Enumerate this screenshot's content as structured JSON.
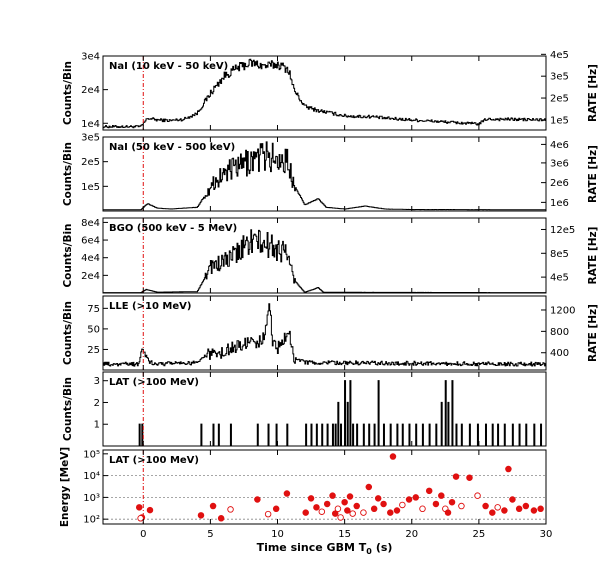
{
  "chart_data": {
    "type": "multi-panel",
    "x_axis": {
      "label": "Time since GBM T",
      "label_subscript": "0",
      "label_unit": "(s)",
      "range": [
        -3,
        30
      ],
      "ticks": [
        0,
        5,
        10,
        15,
        20,
        25,
        30
      ],
      "tick_labels": [
        "0",
        "5",
        "10",
        "15",
        "20",
        "25",
        "30"
      ]
    },
    "trigger_line": {
      "x": 0,
      "color": "#e01010"
    },
    "panels": [
      {
        "id": "nai-low",
        "label": "NaI (10 keV - 50 keV)",
        "ylabel": "Counts/Bin",
        "ylim": [
          8000,
          30000
        ],
        "yticks": [
          10000,
          20000,
          30000
        ],
        "ytick_labels": [
          "1e4",
          "2e4",
          "3e4"
        ],
        "right_label": "RATE [Hz]",
        "right_ticks": [
          {
            "value": 11000,
            "label": "1e5"
          },
          {
            "value": 17500,
            "label": "2e5"
          },
          {
            "value": 24000,
            "label": "3e5"
          },
          {
            "value": 30500,
            "label": "4e5"
          }
        ],
        "baseline": 9000,
        "profile": [
          [
            -3,
            9000
          ],
          [
            -0.2,
            9000
          ],
          [
            0.3,
            11500
          ],
          [
            1,
            11000
          ],
          [
            2,
            10800
          ],
          [
            3,
            11200
          ],
          [
            4,
            13000
          ],
          [
            5,
            19000
          ],
          [
            6,
            24000
          ],
          [
            7,
            26500
          ],
          [
            8,
            28000
          ],
          [
            9,
            27000
          ],
          [
            10,
            27500
          ],
          [
            10.8,
            26000
          ],
          [
            11.2,
            20000
          ],
          [
            12,
            15000
          ],
          [
            13,
            13800
          ],
          [
            14,
            13000
          ],
          [
            15,
            12200
          ],
          [
            16,
            12000
          ],
          [
            17,
            12000
          ],
          [
            18,
            11500
          ],
          [
            20,
            11000
          ],
          [
            22,
            10500
          ],
          [
            24,
            10000
          ],
          [
            25,
            9800
          ],
          [
            25.5,
            11200
          ],
          [
            27,
            11200
          ],
          [
            30,
            11000
          ]
        ]
      },
      {
        "id": "nai-high",
        "label": "NaI (50 keV - 500 keV)",
        "ylabel": "Counts/Bin",
        "ylim": [
          0,
          300000
        ],
        "yticks": [
          100000,
          200000,
          300000
        ],
        "ytick_labels": [
          "1e5",
          "2e5",
          "3e5"
        ],
        "right_label": "RATE [Hz]",
        "right_ticks": [
          {
            "value": 35000,
            "label": "1e6"
          },
          {
            "value": 115000,
            "label": "2e6"
          },
          {
            "value": 195000,
            "label": "3e6"
          },
          {
            "value": 270000,
            "label": "4e6"
          }
        ],
        "baseline": 5000,
        "profile": [
          [
            -3,
            5000
          ],
          [
            -0.2,
            5000
          ],
          [
            0.3,
            30000
          ],
          [
            1,
            12000
          ],
          [
            2,
            8000
          ],
          [
            4,
            15000
          ],
          [
            5,
            100000
          ],
          [
            6,
            155000
          ],
          [
            7,
            175000
          ],
          [
            8,
            205000
          ],
          [
            9,
            225000
          ],
          [
            10,
            210000
          ],
          [
            10.7,
            200000
          ],
          [
            11.2,
            110000
          ],
          [
            12,
            25000
          ],
          [
            13,
            50000
          ],
          [
            13.6,
            15000
          ],
          [
            15,
            8000
          ],
          [
            16.5,
            20000
          ],
          [
            18,
            8000
          ],
          [
            20,
            6000
          ],
          [
            30,
            5000
          ]
        ]
      },
      {
        "id": "bgo",
        "label": "BGO (500 keV - 5 MeV)",
        "ylabel": "Counts/Bin",
        "ylim": [
          0,
          85000
        ],
        "yticks": [
          20000,
          40000,
          60000,
          80000
        ],
        "ytick_labels": [
          "2e4",
          "4e4",
          "6e4",
          "8e4"
        ],
        "right_label": "RATE [Hz]",
        "right_ticks": [
          {
            "value": 18000,
            "label": "4e5"
          },
          {
            "value": 45000,
            "label": "8e5"
          },
          {
            "value": 72000,
            "label": "12e5"
          }
        ],
        "baseline": 400,
        "profile": [
          [
            -3,
            400
          ],
          [
            -0.2,
            400
          ],
          [
            0.2,
            4000
          ],
          [
            1,
            1000
          ],
          [
            4,
            1500
          ],
          [
            5,
            30000
          ],
          [
            6,
            35000
          ],
          [
            7,
            45000
          ],
          [
            8,
            60000
          ],
          [
            9,
            55000
          ],
          [
            10,
            50000
          ],
          [
            10.7,
            45000
          ],
          [
            11.2,
            15000
          ],
          [
            12,
            800
          ],
          [
            13,
            6000
          ],
          [
            13.4,
            800
          ],
          [
            30,
            400
          ]
        ]
      },
      {
        "id": "lle",
        "label": "LLE (>10 MeV)",
        "ylabel": "Counts/Bin",
        "ylim": [
          0,
          90
        ],
        "yticks": [
          25,
          50,
          75
        ],
        "ytick_labels": [
          "25",
          "50",
          "75"
        ],
        "right_label": "RATE [Hz]",
        "right_ticks": [
          {
            "value": 21,
            "label": "400"
          },
          {
            "value": 47,
            "label": "800"
          },
          {
            "value": 73,
            "label": "1200"
          }
        ],
        "baseline": 7,
        "profile": [
          [
            -3,
            7
          ],
          [
            -0.4,
            7
          ],
          [
            -0.1,
            25
          ],
          [
            0.4,
            10
          ],
          [
            1,
            7
          ],
          [
            4,
            9
          ],
          [
            5,
            20
          ],
          [
            6,
            23
          ],
          [
            7,
            28
          ],
          [
            8,
            33
          ],
          [
            9,
            38
          ],
          [
            9.4,
            80
          ],
          [
            9.6,
            30
          ],
          [
            10,
            28
          ],
          [
            10.8,
            48
          ],
          [
            11.2,
            14
          ],
          [
            12,
            9
          ],
          [
            30,
            7
          ]
        ]
      },
      {
        "id": "lat-counts",
        "label": "LAT (>100 MeV)",
        "ylabel": "Counts/Bin",
        "ylim": [
          0,
          3.4
        ],
        "yticks": [
          1,
          2,
          3
        ],
        "ytick_labels": [
          "1",
          "2",
          "3"
        ],
        "bins": [
          [
            -0.3,
            1
          ],
          [
            -0.1,
            1
          ],
          [
            4.3,
            1
          ],
          [
            5.2,
            1
          ],
          [
            5.6,
            1
          ],
          [
            6.5,
            1
          ],
          [
            8.5,
            1
          ],
          [
            9.3,
            1
          ],
          [
            9.9,
            1
          ],
          [
            10.7,
            1
          ],
          [
            12.1,
            1
          ],
          [
            12.5,
            1
          ],
          [
            12.9,
            1
          ],
          [
            13.3,
            1
          ],
          [
            13.7,
            1
          ],
          [
            14.1,
            1
          ],
          [
            14.3,
            1
          ],
          [
            14.5,
            2
          ],
          [
            14.7,
            1
          ],
          [
            15.0,
            3
          ],
          [
            15.2,
            2
          ],
          [
            15.4,
            3
          ],
          [
            15.6,
            1
          ],
          [
            15.9,
            1
          ],
          [
            16.4,
            1
          ],
          [
            16.8,
            1
          ],
          [
            17.2,
            1
          ],
          [
            17.5,
            3
          ],
          [
            17.9,
            1
          ],
          [
            18.4,
            1
          ],
          [
            18.9,
            1
          ],
          [
            19.3,
            1
          ],
          [
            19.8,
            1
          ],
          [
            20.3,
            1
          ],
          [
            20.8,
            1
          ],
          [
            21.3,
            1
          ],
          [
            21.8,
            1
          ],
          [
            22.2,
            2
          ],
          [
            22.5,
            3
          ],
          [
            22.7,
            2
          ],
          [
            23.0,
            3
          ],
          [
            23.3,
            1
          ],
          [
            23.7,
            1
          ],
          [
            24.3,
            1
          ],
          [
            24.9,
            1
          ],
          [
            25.5,
            1
          ],
          [
            26.0,
            1
          ],
          [
            26.4,
            1
          ],
          [
            26.9,
            1
          ],
          [
            27.5,
            1
          ],
          [
            28.0,
            1
          ],
          [
            28.5,
            1
          ],
          [
            29.1,
            1
          ],
          [
            29.6,
            1
          ]
        ]
      },
      {
        "id": "lat-energy",
        "label": "LAT (>100 MeV)",
        "ylabel": "Energy [MeV]",
        "ylim": [
          60,
          150000
        ],
        "log_scale": true,
        "yticks": [
          100,
          1000,
          10000,
          100000
        ],
        "ytick_labels": [
          "10²",
          "10³",
          "10⁴",
          "10⁵"
        ],
        "gridlines": [
          100,
          1000,
          10000
        ],
        "events": [
          [
            -0.3,
            350,
            true
          ],
          [
            -0.1,
            120,
            true
          ],
          [
            0.5,
            260,
            true
          ],
          [
            -0.2,
            110,
            false
          ],
          [
            4.3,
            150,
            true
          ],
          [
            5.2,
            400,
            true
          ],
          [
            5.8,
            110,
            true
          ],
          [
            6.5,
            280,
            false
          ],
          [
            8.5,
            800,
            true
          ],
          [
            9.3,
            170,
            false
          ],
          [
            9.9,
            300,
            true
          ],
          [
            10.7,
            1500,
            true
          ],
          [
            12.1,
            200,
            true
          ],
          [
            12.5,
            900,
            true
          ],
          [
            12.9,
            350,
            true
          ],
          [
            13.3,
            220,
            false
          ],
          [
            13.7,
            500,
            true
          ],
          [
            14.1,
            1200,
            true
          ],
          [
            14.3,
            180,
            true
          ],
          [
            14.5,
            300,
            false
          ],
          [
            14.7,
            120,
            false
          ],
          [
            15.0,
            600,
            true
          ],
          [
            15.2,
            250,
            true
          ],
          [
            15.4,
            1100,
            true
          ],
          [
            15.6,
            180,
            false
          ],
          [
            15.9,
            400,
            true
          ],
          [
            16.4,
            200,
            false
          ],
          [
            16.8,
            3000,
            true
          ],
          [
            17.2,
            300,
            true
          ],
          [
            17.5,
            900,
            true
          ],
          [
            17.9,
            500,
            true
          ],
          [
            18.4,
            200,
            true
          ],
          [
            18.6,
            75000,
            true
          ],
          [
            18.9,
            250,
            true
          ],
          [
            19.3,
            450,
            false
          ],
          [
            19.8,
            800,
            true
          ],
          [
            20.3,
            1000,
            true
          ],
          [
            20.8,
            300,
            false
          ],
          [
            21.3,
            2000,
            true
          ],
          [
            21.8,
            500,
            true
          ],
          [
            22.2,
            1200,
            true
          ],
          [
            22.5,
            300,
            false
          ],
          [
            22.7,
            200,
            true
          ],
          [
            23.0,
            600,
            true
          ],
          [
            23.3,
            9000,
            true
          ],
          [
            23.7,
            400,
            false
          ],
          [
            24.3,
            8000,
            true
          ],
          [
            24.9,
            1200,
            false
          ],
          [
            25.5,
            400,
            true
          ],
          [
            26.0,
            200,
            true
          ],
          [
            26.4,
            350,
            false
          ],
          [
            26.9,
            250,
            true
          ],
          [
            27.2,
            20000,
            true
          ],
          [
            27.5,
            800,
            true
          ],
          [
            28.0,
            300,
            true
          ],
          [
            28.5,
            400,
            true
          ],
          [
            29.1,
            250,
            true
          ],
          [
            29.6,
            300,
            true
          ]
        ]
      }
    ]
  }
}
